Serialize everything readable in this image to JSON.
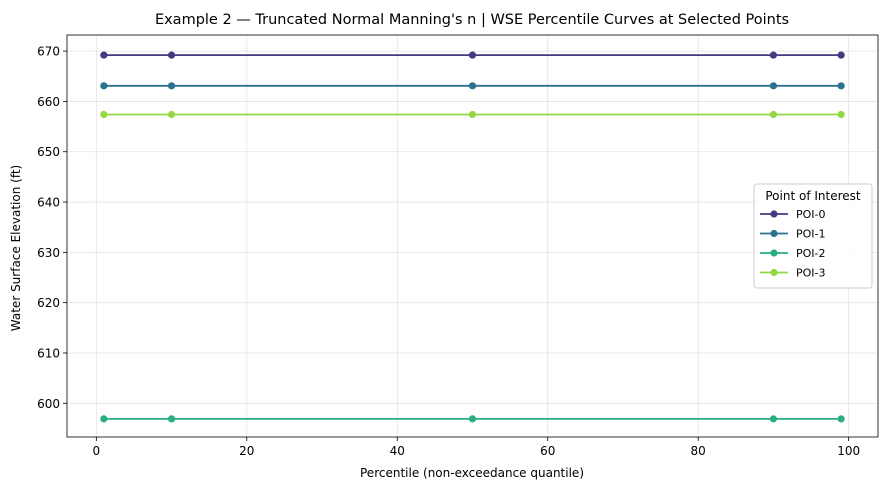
{
  "chart_data": {
    "type": "line",
    "title": "Example 2 — Truncated Normal Manning's n  |  WSE Percentile Curves at Selected Points",
    "xlabel": "Percentile (non-exceedance quantile)",
    "ylabel": "Water Surface Elevation (ft)",
    "xlim": [
      -3.9,
      103.9
    ],
    "ylim": [
      593.3,
      673.2
    ],
    "xticks": [
      0,
      20,
      40,
      60,
      80,
      100
    ],
    "yticks": [
      600,
      610,
      620,
      630,
      640,
      650,
      660,
      670
    ],
    "grid": true,
    "x": [
      1,
      10,
      50,
      90,
      99
    ],
    "legend": {
      "title": "Point of Interest",
      "placement": "center-right"
    },
    "series": [
      {
        "name": "POI-0",
        "color": "#443983",
        "values": [
          669.2,
          669.2,
          669.2,
          669.2,
          669.2
        ]
      },
      {
        "name": "POI-1",
        "color": "#2c728e",
        "values": [
          663.1,
          663.1,
          663.1,
          663.1,
          663.1
        ]
      },
      {
        "name": "POI-2",
        "color": "#28ae80",
        "values": [
          596.9,
          596.9,
          596.9,
          596.9,
          596.9
        ]
      },
      {
        "name": "POI-3",
        "color": "#93d741",
        "values": [
          657.4,
          657.4,
          657.4,
          657.4,
          657.4
        ]
      }
    ]
  }
}
